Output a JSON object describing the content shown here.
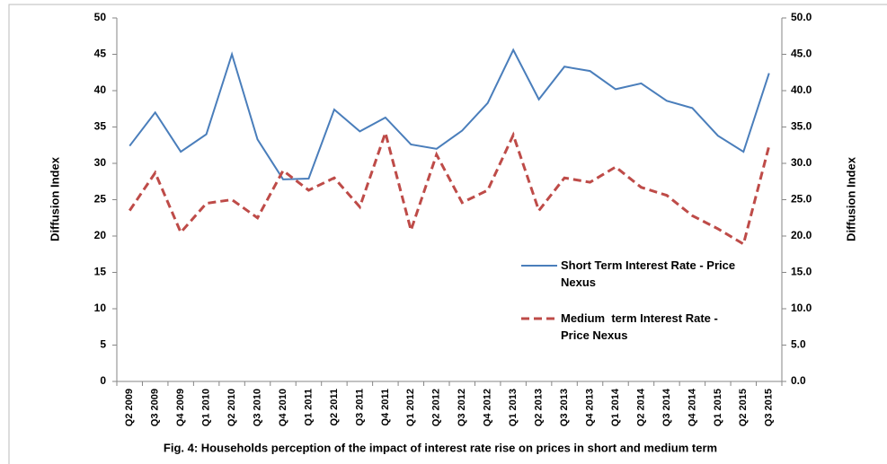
{
  "chart_data": {
    "type": "line",
    "caption": "Fig. 4:  Households  perception of the impact of interest rate rise on prices in short and medium term",
    "y_label": "Diffusion Index",
    "y2_label": "Diffusion Index",
    "categories": [
      "Q2 2009",
      "Q3 2009",
      "Q4 2009",
      "Q1 2010",
      "Q2 2010",
      "Q3 2010",
      "Q4 2010",
      "Q1 2011",
      "Q2 2011",
      "Q3 2011",
      "Q4 2011",
      "Q1 2012",
      "Q2 2012",
      "Q3 2012",
      "Q4 2012",
      "Q1 2013",
      "Q2 2013",
      "Q3 2013",
      "Q4 2013",
      "Q1 2014",
      "Q2 2014",
      "Q3 2014",
      "Q4 2014",
      "Q1 2015",
      "Q2 2015",
      "Q3 2015"
    ],
    "series": [
      {
        "name": "Short Term Interest Rate - Price Nexus",
        "color": "#4a7ebb",
        "dashed": false,
        "values": [
          32.4,
          37.0,
          31.6,
          34.0,
          45.0,
          33.3,
          27.8,
          27.9,
          37.4,
          34.4,
          36.3,
          32.6,
          32.0,
          34.5,
          38.3,
          45.6,
          38.8,
          43.3,
          42.7,
          40.2,
          41.0,
          38.6,
          37.6,
          33.8,
          31.6,
          42.4
        ]
      },
      {
        "name": "Medium  term Interest Rate - Price Nexus",
        "color": "#be4b48",
        "dashed": true,
        "axis": "y2",
        "values": [
          23.5,
          28.7,
          20.5,
          24.5,
          25.0,
          22.5,
          29.0,
          26.3,
          28.0,
          24.0,
          34.2,
          20.8,
          31.2,
          24.6,
          26.3,
          33.9,
          23.5,
          28.0,
          27.4,
          29.5,
          26.7,
          25.6,
          22.8,
          21.0,
          18.9,
          32.4
        ]
      }
    ],
    "ylim": [
      0,
      50
    ],
    "yticks": [
      0,
      5,
      10,
      15,
      20,
      25,
      30,
      35,
      40,
      45,
      50
    ],
    "y2lim": [
      0,
      50
    ],
    "y2ticks": [
      {
        "value": 0,
        "label": "0.0"
      },
      {
        "value": 5,
        "label": "5.0"
      },
      {
        "value": 10,
        "label": "10.0"
      },
      {
        "value": 15,
        "label": "15.0"
      },
      {
        "value": 20,
        "label": "20.0"
      },
      {
        "value": 25,
        "label": "25.0"
      },
      {
        "value": 30,
        "label": "30.0"
      },
      {
        "value": 35,
        "label": "35.0"
      },
      {
        "value": 40,
        "label": "40.0"
      },
      {
        "value": 45,
        "label": "45.0"
      },
      {
        "value": 50,
        "label": "50.0"
      }
    ],
    "grid": false
  }
}
